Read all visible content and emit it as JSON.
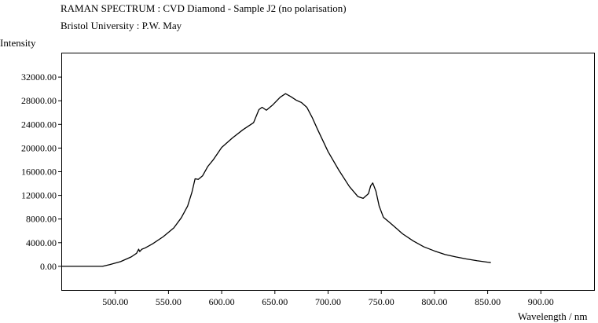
{
  "chart_data": {
    "type": "line",
    "title": "RAMAN SPECTRUM : CVD Diamond - Sample J2 (no polarisation)",
    "subtitle": "Bristol University : P.W. May",
    "ylabel": "Intensity",
    "xlabel": "Wavelength / nm",
    "xlim": [
      450,
      950
    ],
    "ylim": [
      -4000,
      36000
    ],
    "x_ticks": [
      500,
      550,
      600,
      650,
      700,
      750,
      800,
      850,
      900
    ],
    "x_tick_labels": [
      "500.00",
      "550.00",
      "600.00",
      "650.00",
      "700.00",
      "750.00",
      "800.00",
      "850.00",
      "900.00"
    ],
    "y_ticks": [
      0,
      4000,
      8000,
      12000,
      16000,
      20000,
      24000,
      28000,
      32000
    ],
    "y_tick_labels": [
      "0.00",
      "4000.00",
      "8000.00",
      "12000.00",
      "16000.00",
      "20000.00",
      "24000.00",
      "28000.00",
      "32000.00"
    ],
    "grid": false,
    "legend": "none",
    "line_color": "#000000",
    "series": [
      {
        "x": [
          450,
          488,
          495,
          505,
          515,
          520,
          522,
          523,
          525,
          528,
          535,
          545,
          555,
          562,
          568,
          572,
          575,
          578,
          582,
          587,
          592,
          600,
          610,
          620,
          630,
          635,
          638,
          642,
          648,
          655,
          660,
          665,
          670,
          675,
          680,
          685,
          690,
          700,
          710,
          720,
          728,
          733,
          738,
          740,
          742,
          745,
          748,
          752,
          758,
          765,
          770,
          780,
          790,
          800,
          810,
          820,
          830,
          840,
          850,
          853
        ],
        "y": [
          0,
          0,
          300,
          800,
          1600,
          2200,
          2900,
          2500,
          2900,
          3100,
          3800,
          5000,
          6500,
          8200,
          10200,
          12500,
          14800,
          14700,
          15300,
          16900,
          18000,
          20100,
          21700,
          23100,
          24300,
          26500,
          26900,
          26400,
          27300,
          28600,
          29200,
          28700,
          28100,
          27700,
          26900,
          25200,
          23200,
          19400,
          16300,
          13500,
          11800,
          11500,
          12300,
          13600,
          14100,
          12700,
          10200,
          8300,
          7400,
          6300,
          5500,
          4300,
          3300,
          2600,
          2000,
          1600,
          1250,
          950,
          700,
          640
        ]
      }
    ]
  }
}
